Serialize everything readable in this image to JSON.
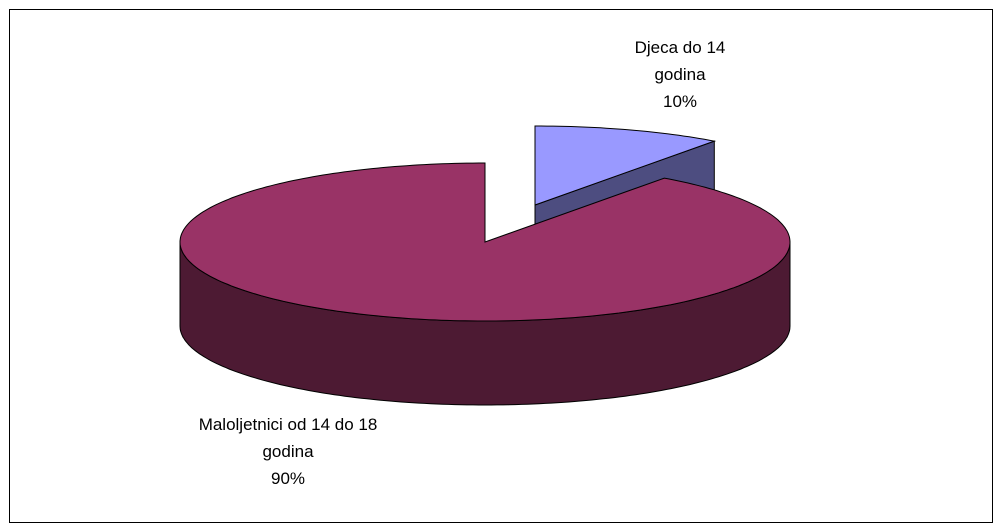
{
  "chart_data": {
    "type": "pie",
    "categories": [
      "Djeca do 14 godina",
      "Maloljetnici od 14 do 18 godina"
    ],
    "values": [
      10,
      90
    ],
    "value_labels": [
      "10%",
      "90%"
    ],
    "colors": [
      "#9999ff",
      "#993366"
    ],
    "side_colors": [
      "#4d4d80",
      "#4d1a33"
    ]
  }
}
